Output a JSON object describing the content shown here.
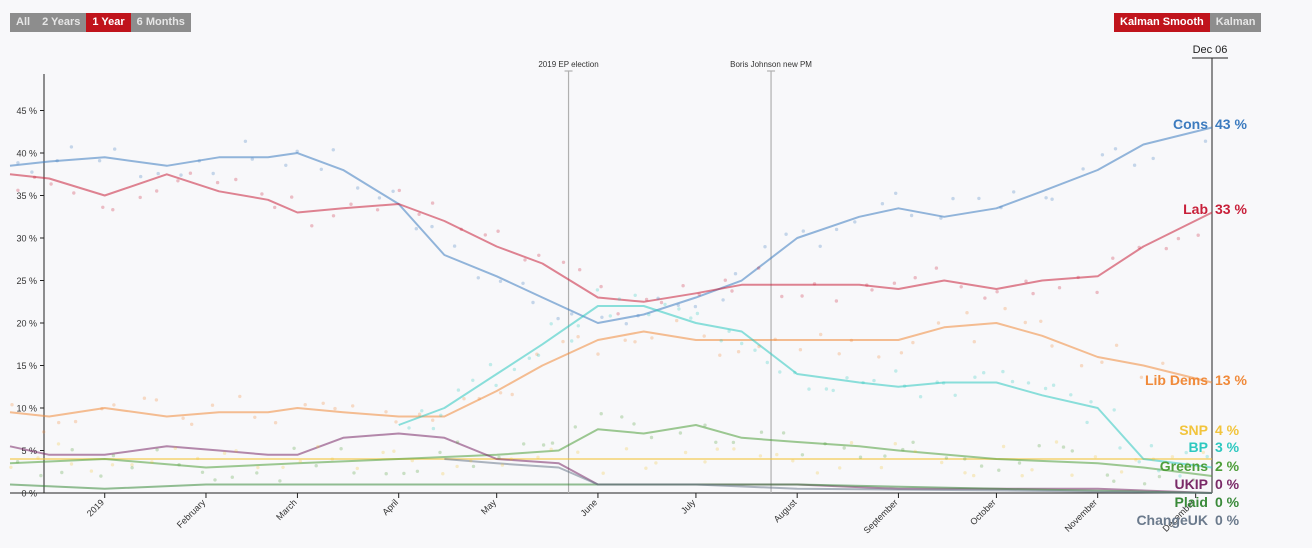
{
  "controls": {
    "range_buttons": [
      {
        "label": "All",
        "active": false
      },
      {
        "label": "2 Years",
        "active": false
      },
      {
        "label": "1 Year",
        "active": true
      },
      {
        "label": "6 Months",
        "active": false
      }
    ],
    "smoothing_buttons": [
      {
        "label": "Kalman Smooth",
        "active": true
      },
      {
        "label": "Kalman",
        "active": false
      }
    ]
  },
  "chart_data": {
    "type": "line",
    "title": "",
    "xlabel": "",
    "ylabel": "",
    "ylim": [
      0,
      50
    ],
    "xlim": [
      "2018-12-03",
      "2019-12-06"
    ],
    "y_ticks": [
      0,
      5,
      10,
      15,
      20,
      25,
      30,
      35,
      40,
      45
    ],
    "y_tick_labels": [
      "0 %",
      "5 %",
      "10 %",
      "15 %",
      "20 %",
      "25 %",
      "30 %",
      "35 %",
      "40 %",
      "45 %"
    ],
    "x_ticks": [
      {
        "date": "2019-01-01",
        "label": "2019"
      },
      {
        "date": "2019-02-01",
        "label": "February"
      },
      {
        "date": "2019-03-01",
        "label": "March"
      },
      {
        "date": "2019-04-01",
        "label": "April"
      },
      {
        "date": "2019-05-01",
        "label": "May"
      },
      {
        "date": "2019-06-01",
        "label": "June"
      },
      {
        "date": "2019-07-01",
        "label": "July"
      },
      {
        "date": "2019-08-01",
        "label": "August"
      },
      {
        "date": "2019-09-01",
        "label": "September"
      },
      {
        "date": "2019-10-01",
        "label": "October"
      },
      {
        "date": "2019-11-01",
        "label": "November"
      },
      {
        "date": "2019-12-01",
        "label": "December"
      }
    ],
    "current_date_label": "Dec 06",
    "grid": false,
    "legend": "right",
    "annotations": [
      {
        "date": "2019-05-23",
        "label": "2019 EP election"
      },
      {
        "date": "2019-07-24",
        "label": "Boris Johnson new PM"
      }
    ],
    "series": [
      {
        "name": "Cons",
        "value_label": "43 %",
        "color": "#3c7bbf",
        "x": [
          "2018-12-03",
          "2018-12-15",
          "2019-01-01",
          "2019-01-20",
          "2019-02-05",
          "2019-02-20",
          "2019-03-01",
          "2019-03-15",
          "2019-04-01",
          "2019-04-15",
          "2019-05-01",
          "2019-05-15",
          "2019-06-01",
          "2019-06-15",
          "2019-07-01",
          "2019-07-15",
          "2019-08-01",
          "2019-08-20",
          "2019-09-01",
          "2019-09-15",
          "2019-10-01",
          "2019-10-15",
          "2019-11-01",
          "2019-11-15",
          "2019-12-06"
        ],
        "y": [
          38.5,
          39,
          39.5,
          38.5,
          39.5,
          39.5,
          40,
          38,
          34,
          28,
          25.5,
          23,
          20,
          21,
          23,
          25,
          30,
          32.5,
          33.5,
          32.5,
          33.5,
          35.5,
          38,
          41,
          43
        ]
      },
      {
        "name": "Lab",
        "value_label": "33 %",
        "color": "#c8203a",
        "x": [
          "2018-12-03",
          "2018-12-15",
          "2019-01-01",
          "2019-01-20",
          "2019-02-05",
          "2019-02-20",
          "2019-03-01",
          "2019-03-15",
          "2019-04-01",
          "2019-04-15",
          "2019-05-01",
          "2019-05-15",
          "2019-06-01",
          "2019-06-15",
          "2019-07-01",
          "2019-07-15",
          "2019-08-01",
          "2019-08-20",
          "2019-09-01",
          "2019-09-15",
          "2019-10-01",
          "2019-10-15",
          "2019-11-01",
          "2019-11-15",
          "2019-12-06"
        ],
        "y": [
          37.5,
          37,
          35,
          37.5,
          35.5,
          34.5,
          33,
          33.5,
          34,
          32,
          29,
          27,
          23,
          22.5,
          23.5,
          24.5,
          24.5,
          24.5,
          24,
          25,
          24,
          25,
          25.5,
          29,
          33
        ]
      },
      {
        "name": "Lib Dems",
        "value_label": "13 %",
        "color": "#f08a3a",
        "x": [
          "2018-12-03",
          "2018-12-15",
          "2019-01-01",
          "2019-01-20",
          "2019-02-05",
          "2019-02-20",
          "2019-03-01",
          "2019-03-15",
          "2019-04-01",
          "2019-04-15",
          "2019-05-01",
          "2019-05-15",
          "2019-06-01",
          "2019-06-15",
          "2019-07-01",
          "2019-07-15",
          "2019-08-01",
          "2019-08-20",
          "2019-09-01",
          "2019-09-15",
          "2019-10-01",
          "2019-10-15",
          "2019-11-01",
          "2019-11-15",
          "2019-12-06"
        ],
        "y": [
          9.5,
          9,
          10,
          9,
          9.5,
          9.5,
          10,
          9.5,
          9,
          9,
          12,
          15,
          18,
          19,
          18,
          18,
          18,
          18,
          18,
          19.5,
          20,
          18.5,
          16,
          15,
          13
        ]
      },
      {
        "name": "SNP",
        "value_label": "4 %",
        "color": "#f2c43c",
        "x": [
          "2018-12-03",
          "2019-02-01",
          "2019-04-01",
          "2019-06-01",
          "2019-08-01",
          "2019-10-01",
          "2019-12-06"
        ],
        "y": [
          4,
          4,
          4,
          4,
          4,
          4,
          4
        ]
      },
      {
        "name": "BP",
        "value_label": "3 %",
        "color": "#2ec8c0",
        "x": [
          "2019-04-01",
          "2019-04-15",
          "2019-05-01",
          "2019-05-15",
          "2019-06-01",
          "2019-06-15",
          "2019-07-01",
          "2019-07-15",
          "2019-08-01",
          "2019-08-20",
          "2019-09-01",
          "2019-09-15",
          "2019-10-01",
          "2019-10-15",
          "2019-11-01",
          "2019-11-15",
          "2019-12-06"
        ],
        "y": [
          8,
          10,
          14,
          17.5,
          22,
          22,
          20,
          19,
          14,
          13,
          12.5,
          13,
          13,
          11.5,
          10,
          4,
          3
        ]
      },
      {
        "name": "Greens",
        "value_label": "2 %",
        "color": "#4e9e3a",
        "x": [
          "2018-12-03",
          "2019-01-01",
          "2019-02-01",
          "2019-03-01",
          "2019-04-01",
          "2019-05-01",
          "2019-05-20",
          "2019-06-01",
          "2019-06-15",
          "2019-07-01",
          "2019-07-15",
          "2019-08-01",
          "2019-08-20",
          "2019-09-01",
          "2019-10-01",
          "2019-11-01",
          "2019-11-15",
          "2019-12-06"
        ],
        "y": [
          3.5,
          4,
          3,
          3.5,
          4,
          4.5,
          5,
          7.5,
          7,
          8,
          6.5,
          6,
          5.5,
          5,
          4,
          3.5,
          3,
          2
        ]
      },
      {
        "name": "UKIP",
        "value_label": "0 %",
        "color": "#7a2a68",
        "x": [
          "2018-12-03",
          "2018-12-15",
          "2019-01-01",
          "2019-01-20",
          "2019-02-05",
          "2019-02-20",
          "2019-03-01",
          "2019-03-15",
          "2019-04-01",
          "2019-04-15",
          "2019-05-01",
          "2019-05-20",
          "2019-06-01",
          "2019-07-01",
          "2019-08-01",
          "2019-09-01",
          "2019-10-01",
          "2019-11-01",
          "2019-12-06"
        ],
        "y": [
          5.5,
          4.5,
          4.5,
          5.5,
          5,
          4.5,
          4.5,
          6.5,
          7,
          6.5,
          4,
          3.5,
          1,
          1,
          1,
          0.5,
          0.5,
          0.5,
          0
        ]
      },
      {
        "name": "Plaid",
        "value_label": "0 %",
        "color": "#3a8a3a",
        "x": [
          "2018-12-03",
          "2019-01-01",
          "2019-02-01",
          "2019-04-01",
          "2019-06-01",
          "2019-08-01",
          "2019-10-01",
          "2019-12-06"
        ],
        "y": [
          1,
          0.5,
          1,
          1,
          1,
          1,
          0.5,
          0
        ]
      },
      {
        "name": "ChangeUK",
        "value_label": "0 %",
        "color": "#6b7a8c",
        "x": [
          "2019-04-15",
          "2019-05-01",
          "2019-05-20",
          "2019-06-01",
          "2019-07-01",
          "2019-08-01",
          "2019-10-01",
          "2019-12-06"
        ],
        "y": [
          4,
          3.5,
          3,
          1,
          1,
          0.5,
          0.3,
          0
        ]
      }
    ]
  }
}
